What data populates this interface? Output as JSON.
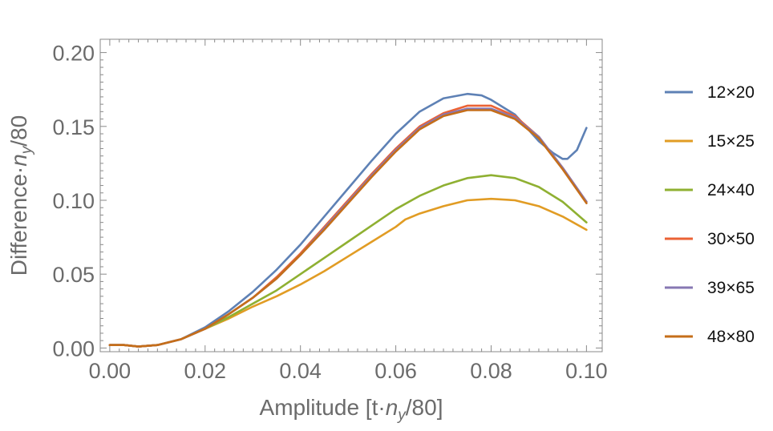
{
  "chart_data": {
    "type": "line",
    "title": "",
    "xlabel_main": "Amplitude [t·",
    "xlabel_var": "n",
    "xlabel_sub": "y",
    "xlabel_tail": "/80]",
    "ylabel_main": "Difference·",
    "ylabel_var": "n",
    "ylabel_sub": "y",
    "ylabel_tail": "/80",
    "xlim": [
      -0.002,
      0.1033
    ],
    "ylim": [
      -0.0025,
      0.209
    ],
    "x_ticks": [
      0.0,
      0.02,
      0.04,
      0.06,
      0.08,
      0.1
    ],
    "x_tick_labels": [
      "0.00",
      "0.02",
      "0.04",
      "0.06",
      "0.08",
      "0.10"
    ],
    "y_ticks": [
      0.0,
      0.05,
      0.1,
      0.15,
      0.2
    ],
    "y_tick_labels": [
      "0.00",
      "0.05",
      "0.10",
      "0.15",
      "0.20"
    ],
    "legend_position": "right",
    "grid": false,
    "series": [
      {
        "name": "12×20",
        "color": "#5E81B5",
        "x": [
          0,
          0.003,
          0.006,
          0.01,
          0.015,
          0.02,
          0.025,
          0.03,
          0.035,
          0.04,
          0.045,
          0.05,
          0.055,
          0.06,
          0.065,
          0.07,
          0.075,
          0.078,
          0.08,
          0.085,
          0.09,
          0.093,
          0.095,
          0.096,
          0.098,
          0.1
        ],
        "y": [
          0.002,
          0.002,
          0.001,
          0.002,
          0.006,
          0.014,
          0.025,
          0.038,
          0.053,
          0.07,
          0.089,
          0.108,
          0.127,
          0.145,
          0.16,
          0.169,
          0.172,
          0.171,
          0.168,
          0.158,
          0.14,
          0.132,
          0.128,
          0.128,
          0.134,
          0.149
        ]
      },
      {
        "name": "15×25",
        "color": "#E19C24",
        "x": [
          0,
          0.003,
          0.006,
          0.01,
          0.015,
          0.02,
          0.025,
          0.03,
          0.035,
          0.04,
          0.045,
          0.05,
          0.055,
          0.06,
          0.062,
          0.065,
          0.07,
          0.075,
          0.08,
          0.085,
          0.09,
          0.095,
          0.1
        ],
        "y": [
          0.002,
          0.002,
          0.001,
          0.002,
          0.006,
          0.013,
          0.02,
          0.028,
          0.035,
          0.043,
          0.052,
          0.062,
          0.072,
          0.082,
          0.087,
          0.091,
          0.096,
          0.1,
          0.101,
          0.1,
          0.096,
          0.089,
          0.08
        ]
      },
      {
        "name": "24×40",
        "color": "#8FB032",
        "x": [
          0,
          0.003,
          0.006,
          0.01,
          0.015,
          0.02,
          0.025,
          0.03,
          0.035,
          0.04,
          0.045,
          0.05,
          0.055,
          0.06,
          0.065,
          0.07,
          0.075,
          0.08,
          0.085,
          0.09,
          0.095,
          0.1
        ],
        "y": [
          0.002,
          0.002,
          0.001,
          0.002,
          0.006,
          0.013,
          0.021,
          0.03,
          0.039,
          0.05,
          0.061,
          0.072,
          0.083,
          0.094,
          0.103,
          0.11,
          0.115,
          0.117,
          0.115,
          0.109,
          0.099,
          0.085
        ]
      },
      {
        "name": "30×50",
        "color": "#EB6235",
        "x": [
          0,
          0.003,
          0.006,
          0.01,
          0.015,
          0.02,
          0.025,
          0.03,
          0.035,
          0.04,
          0.045,
          0.05,
          0.055,
          0.06,
          0.065,
          0.07,
          0.075,
          0.08,
          0.085,
          0.09,
          0.095,
          0.1
        ],
        "y": [
          0.002,
          0.002,
          0.001,
          0.002,
          0.006,
          0.013,
          0.023,
          0.034,
          0.048,
          0.064,
          0.082,
          0.1,
          0.118,
          0.135,
          0.15,
          0.159,
          0.164,
          0.164,
          0.157,
          0.143,
          0.122,
          0.099
        ]
      },
      {
        "name": "39×65",
        "color": "#8778B3",
        "x": [
          0,
          0.003,
          0.006,
          0.01,
          0.015,
          0.02,
          0.025,
          0.03,
          0.035,
          0.04,
          0.045,
          0.05,
          0.055,
          0.06,
          0.065,
          0.07,
          0.075,
          0.08,
          0.085,
          0.09,
          0.095,
          0.1
        ],
        "y": [
          0.002,
          0.002,
          0.001,
          0.002,
          0.006,
          0.013,
          0.023,
          0.034,
          0.047,
          0.063,
          0.081,
          0.099,
          0.117,
          0.134,
          0.149,
          0.158,
          0.162,
          0.162,
          0.156,
          0.143,
          0.122,
          0.099
        ]
      },
      {
        "name": "48×80",
        "color": "#C56E1A",
        "x": [
          0,
          0.003,
          0.006,
          0.01,
          0.015,
          0.02,
          0.025,
          0.03,
          0.035,
          0.04,
          0.045,
          0.05,
          0.055,
          0.06,
          0.065,
          0.07,
          0.075,
          0.08,
          0.085,
          0.09,
          0.095,
          0.1
        ],
        "y": [
          0.002,
          0.002,
          0.001,
          0.002,
          0.006,
          0.013,
          0.023,
          0.034,
          0.047,
          0.063,
          0.08,
          0.098,
          0.116,
          0.133,
          0.148,
          0.157,
          0.161,
          0.161,
          0.155,
          0.142,
          0.121,
          0.098
        ]
      }
    ]
  }
}
